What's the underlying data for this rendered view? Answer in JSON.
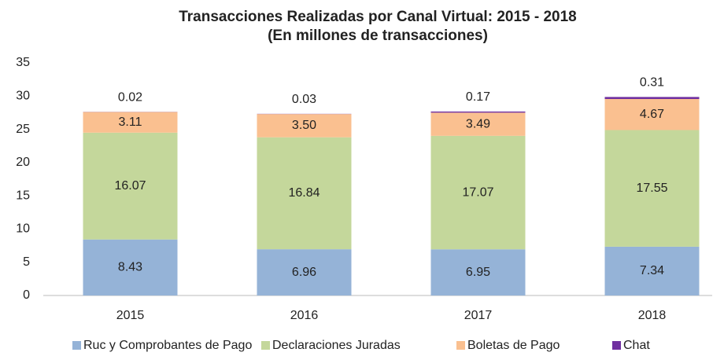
{
  "chart_data": {
    "type": "stacked_bar",
    "title": "Transacciones Realizadas por Canal Virtual: 2015 - 2018",
    "subtitle": "(En millones de transacciones)",
    "categories": [
      "2015",
      "2016",
      "2017",
      "2018"
    ],
    "series": [
      {
        "name": "Ruc y Comprobantes de Pago",
        "color": "#95b3d7",
        "values": [
          8.43,
          6.96,
          6.95,
          7.34
        ]
      },
      {
        "name": "Declaraciones Juradas",
        "color": "#c4d79b",
        "values": [
          16.07,
          16.84,
          17.07,
          17.55
        ]
      },
      {
        "name": "Boletas de Pago",
        "color": "#fac090",
        "values": [
          3.11,
          3.5,
          3.49,
          4.67
        ],
        "value_labels": [
          "3.11",
          "3.50",
          "3.49",
          "4.67"
        ]
      },
      {
        "name": "Chat",
        "color": "#7030a0",
        "values": [
          0.02,
          0.03,
          0.17,
          0.31
        ]
      }
    ],
    "ylim": [
      0,
      35
    ],
    "yticks": [
      0,
      5,
      10,
      15,
      20,
      25,
      30,
      35
    ],
    "grid": false,
    "legend": "bottom"
  }
}
